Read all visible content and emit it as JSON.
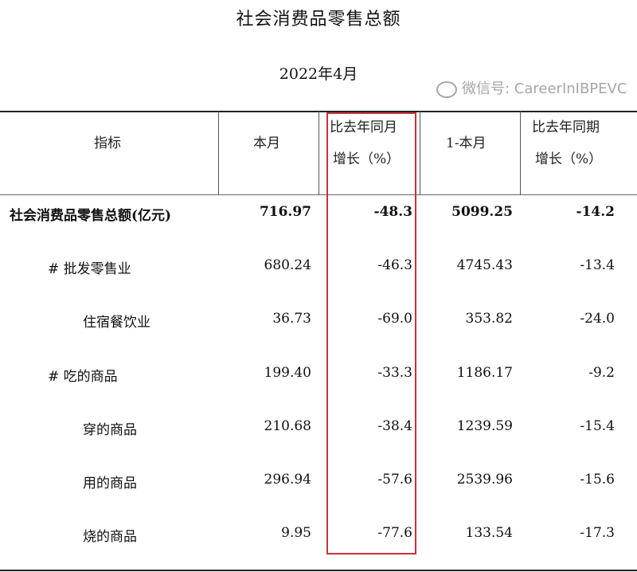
{
  "title": "社会消费品零售总额",
  "subtitle": "2022年4月",
  "headers": {
    "indicator": "指标",
    "this_month": "本月",
    "yoy_month_line1": "比去年同月",
    "yoy_month_line2": "增长（%）",
    "ytd": "1-本月",
    "yoy_period_line1": "比去年同期",
    "yoy_period_line2": "增长（%）"
  },
  "rows": [
    {
      "name": "社会消费品零售总额(亿元)",
      "this_month": "716.97",
      "yoy_month": "-48.3",
      "ytd": "5099.25",
      "yoy_period": "-14.2"
    },
    {
      "name": "# 批发零售业",
      "this_month": "680.24",
      "yoy_month": "-46.3",
      "ytd": "4745.43",
      "yoy_period": "-13.4"
    },
    {
      "name": "住宿餐饮业",
      "this_month": "36.73",
      "yoy_month": "-69.0",
      "ytd": "353.82",
      "yoy_period": "-24.0"
    },
    {
      "name": "# 吃的商品",
      "this_month": "199.40",
      "yoy_month": "-33.3",
      "ytd": "1186.17",
      "yoy_period": "-9.2"
    },
    {
      "name": "穿的商品",
      "this_month": "210.68",
      "yoy_month": "-38.4",
      "ytd": "1239.59",
      "yoy_period": "-15.4"
    },
    {
      "name": "用的商品",
      "this_month": "296.94",
      "yoy_month": "-57.6",
      "ytd": "2539.96",
      "yoy_period": "-15.6"
    },
    {
      "name": "烧的商品",
      "this_month": "9.95",
      "yoy_month": "-77.6",
      "ytd": "133.54",
      "yoy_period": "-17.3"
    }
  ],
  "highlight_color": "#c8323a",
  "watermark": "微信号: CareerInIBPEVC"
}
